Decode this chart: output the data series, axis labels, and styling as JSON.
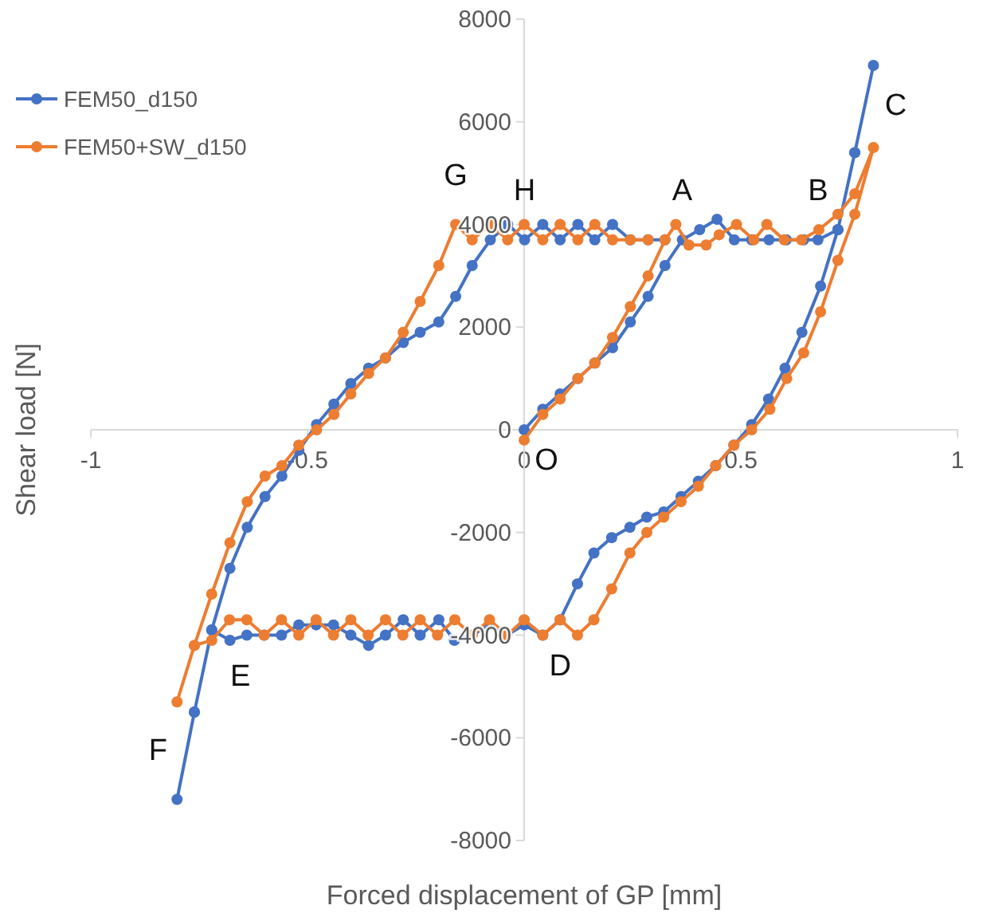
{
  "chart_data": {
    "type": "line",
    "xlabel": "Forced displacement of GP  [mm]",
    "ylabel": "Shear load  [N]",
    "xlim": [
      -1,
      1
    ],
    "xticks": [
      -1,
      -0.5,
      0,
      0.5,
      1
    ],
    "ylim": [
      -8000,
      8000
    ],
    "yticks": [
      -8000,
      -6000,
      -4000,
      -2000,
      0,
      2000,
      4000,
      6000,
      8000
    ],
    "grid": false,
    "legend": "top left",
    "marker": "circle",
    "line_style": "solid",
    "series": [
      {
        "name": "FEM50_d150",
        "color": "#4472c4",
        "x": [
          0,
          0.043,
          0.083,
          0.124,
          0.163,
          0.204,
          0.245,
          0.286,
          0.325,
          0.365,
          0.405,
          0.445,
          0.485,
          0.525,
          0.565,
          0.605,
          0.645,
          0.678,
          0.724,
          0.763,
          0.806,
          0.763,
          0.724,
          0.684,
          0.641,
          0.602,
          0.564,
          0.525,
          0.484,
          0.442,
          0.402,
          0.362,
          0.322,
          0.283,
          0.244,
          0.202,
          0.161,
          0.123,
          0.083,
          0.043,
          0,
          -0.04,
          -0.08,
          -0.12,
          -0.161,
          -0.197,
          -0.24,
          -0.279,
          -0.32,
          -0.359,
          -0.4,
          -0.44,
          -0.48,
          -0.52,
          -0.56,
          -0.6,
          -0.64,
          -0.679,
          -0.721,
          -0.761,
          -0.801,
          -0.761,
          -0.721,
          -0.679,
          -0.639,
          -0.598,
          -0.559,
          -0.52,
          -0.479,
          -0.439,
          -0.4,
          -0.359,
          -0.32,
          -0.279,
          -0.24,
          -0.197,
          -0.158,
          -0.12,
          -0.078,
          -0.038,
          0.001,
          0.043,
          0.083,
          0.124,
          0.163,
          0.204,
          0.245,
          0.286,
          0.325
        ],
        "values": [
          0,
          400,
          700,
          1000,
          1300,
          1600,
          2100,
          2600,
          3200,
          3700,
          3900,
          4100,
          3700,
          3700,
          3700,
          3700,
          3700,
          3700,
          3900,
          5400,
          7100,
          5400,
          3900,
          2800,
          1900,
          1200,
          600,
          100,
          -300,
          -700,
          -1000,
          -1300,
          -1600,
          -1700,
          -1900,
          -2100,
          -2400,
          -3000,
          -3700,
          -4000,
          -3800,
          -4000,
          -3800,
          -4000,
          -4100,
          -3700,
          -4000,
          -3700,
          -4000,
          -4200,
          -4000,
          -3800,
          -3800,
          -3800,
          -4000,
          -4000,
          -4000,
          -4100,
          -3900,
          -5500,
          -7200,
          -5500,
          -3900,
          -2700,
          -1900,
          -1300,
          -900,
          -400,
          100,
          500,
          900,
          1200,
          1400,
          1700,
          1900,
          2100,
          2600,
          3200,
          3700,
          4000,
          3700,
          4000,
          3700,
          4000,
          3700,
          4000,
          3700,
          3700,
          3700
        ]
      },
      {
        "name": "FEM50+SW_d150",
        "color": "#ed7d31",
        "x": [
          0,
          0.043,
          0.083,
          0.124,
          0.163,
          0.204,
          0.245,
          0.286,
          0.325,
          0.35,
          0.38,
          0.42,
          0.45,
          0.49,
          0.53,
          0.56,
          0.6,
          0.64,
          0.68,
          0.724,
          0.763,
          0.806,
          0.763,
          0.724,
          0.684,
          0.645,
          0.606,
          0.567,
          0.525,
          0.484,
          0.442,
          0.402,
          0.362,
          0.322,
          0.283,
          0.244,
          0.202,
          0.161,
          0.123,
          0.083,
          0.043,
          0,
          -0.04,
          -0.08,
          -0.12,
          -0.16,
          -0.2,
          -0.24,
          -0.28,
          -0.32,
          -0.36,
          -0.4,
          -0.44,
          -0.48,
          -0.52,
          -0.56,
          -0.6,
          -0.64,
          -0.68,
          -0.721,
          -0.761,
          -0.801,
          -0.761,
          -0.721,
          -0.679,
          -0.639,
          -0.598,
          -0.559,
          -0.52,
          -0.479,
          -0.439,
          -0.4,
          -0.359,
          -0.32,
          -0.279,
          -0.24,
          -0.197,
          -0.158,
          -0.12,
          -0.078,
          -0.038,
          0,
          0.043,
          0.083,
          0.124,
          0.163,
          0.204,
          0.245,
          0.286
        ],
        "values": [
          -200,
          300,
          600,
          1000,
          1300,
          1800,
          2400,
          3000,
          3700,
          4000,
          3600,
          3600,
          3800,
          4000,
          3700,
          4000,
          3700,
          3700,
          3900,
          4200,
          4600,
          5500,
          4200,
          3300,
          2300,
          1500,
          1000,
          400,
          0,
          -300,
          -700,
          -1100,
          -1400,
          -1700,
          -2000,
          -2400,
          -3100,
          -3700,
          -4000,
          -3700,
          -4000,
          -3700,
          -4000,
          -3700,
          -4000,
          -3700,
          -4000,
          -3700,
          -4000,
          -3700,
          -4000,
          -3700,
          -4000,
          -3700,
          -4000,
          -3700,
          -4000,
          -3700,
          -3700,
          -4100,
          -4200,
          -5300,
          -4200,
          -3200,
          -2200,
          -1400,
          -900,
          -700,
          -300,
          0,
          300,
          700,
          1100,
          1400,
          1900,
          2500,
          3200,
          4000,
          3700,
          4000,
          3700,
          4000,
          3700,
          4000,
          3700,
          4000,
          3700,
          3700,
          3700
        ]
      }
    ],
    "annotations": [
      {
        "text": "O",
        "x": 0,
        "y": 0
      },
      {
        "text": "A",
        "x": 0.365,
        "y": 3700
      },
      {
        "text": "B",
        "x": 0.678,
        "y": 3700
      },
      {
        "text": "C",
        "x": 0.806,
        "y": 7100
      },
      {
        "text": "D",
        "x": 0.083,
        "y": -3700
      },
      {
        "text": "E",
        "x": -0.721,
        "y": -3900
      },
      {
        "text": "F",
        "x": -0.801,
        "y": -7200
      },
      {
        "text": "G",
        "x": -0.158,
        "y": 4000
      },
      {
        "text": "H",
        "x": 0.001,
        "y": 3700
      }
    ]
  }
}
